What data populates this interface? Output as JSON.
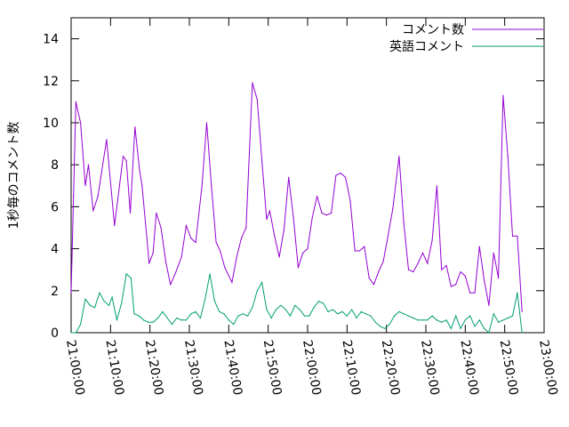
{
  "chart_data": {
    "type": "line",
    "title": "",
    "xlabel": "",
    "ylabel": "1秒毎のコメント数",
    "xlim": [
      "21:00:00",
      "23:00:00"
    ],
    "ylim": [
      0,
      15
    ],
    "x_ticks": [
      "21:00:00",
      "21:10:00",
      "21:20:00",
      "21:30:00",
      "21:40:00",
      "21:50:00",
      "22:00:00",
      "22:10:00",
      "22:20:00",
      "22:30:00",
      "22:40:00",
      "22:50:00",
      "23:00:00"
    ],
    "y_ticks": [
      0,
      2,
      4,
      6,
      8,
      10,
      12,
      14
    ],
    "grid": false,
    "legend_position": "top-right",
    "series": [
      {
        "name": "コメント数",
        "color": "#9400d3",
        "points": [
          [
            "21:00:00",
            1.9
          ],
          [
            "21:00:36",
            6.5
          ],
          [
            "21:01:12",
            11.0
          ],
          [
            "21:02:24",
            10.0
          ],
          [
            "21:03:36",
            7.0
          ],
          [
            "21:04:24",
            8.0
          ],
          [
            "21:05:36",
            5.8
          ],
          [
            "21:06:48",
            6.5
          ],
          [
            "21:09:00",
            9.2
          ],
          [
            "21:11:00",
            5.1
          ],
          [
            "21:13:12",
            8.4
          ],
          [
            "21:14:00",
            8.2
          ],
          [
            "21:15:00",
            5.7
          ],
          [
            "21:16:12",
            9.8
          ],
          [
            "21:17:24",
            7.7
          ],
          [
            "21:18:00",
            7.0
          ],
          [
            "21:19:48",
            3.3
          ],
          [
            "21:20:48",
            3.8
          ],
          [
            "21:21:36",
            5.7
          ],
          [
            "21:22:48",
            5.0
          ],
          [
            "21:24:00",
            3.4
          ],
          [
            "21:25:12",
            2.3
          ],
          [
            "21:26:24",
            2.8
          ],
          [
            "21:28:00",
            3.6
          ],
          [
            "21:29:12",
            5.1
          ],
          [
            "21:30:24",
            4.5
          ],
          [
            "21:31:36",
            4.3
          ],
          [
            "21:33:12",
            7.0
          ],
          [
            "21:34:24",
            10.0
          ],
          [
            "21:35:36",
            7.0
          ],
          [
            "21:36:48",
            4.3
          ],
          [
            "21:37:48",
            3.9
          ],
          [
            "21:39:00",
            3.1
          ],
          [
            "21:40:48",
            2.4
          ],
          [
            "21:42:00",
            3.6
          ],
          [
            "21:43:12",
            4.5
          ],
          [
            "21:44:24",
            5.0
          ],
          [
            "21:46:00",
            11.9
          ],
          [
            "21:47:12",
            11.1
          ],
          [
            "21:48:24",
            8.2
          ],
          [
            "21:49:36",
            5.4
          ],
          [
            "21:50:24",
            5.8
          ],
          [
            "21:51:36",
            4.6
          ],
          [
            "21:52:48",
            3.6
          ],
          [
            "21:54:00",
            4.9
          ],
          [
            "21:55:12",
            7.4
          ],
          [
            "21:56:24",
            5.5
          ],
          [
            "21:57:36",
            3.1
          ],
          [
            "21:58:48",
            3.8
          ],
          [
            "22:00:00",
            4.0
          ],
          [
            "22:01:12",
            5.5
          ],
          [
            "22:02:24",
            6.5
          ],
          [
            "22:03:36",
            5.7
          ],
          [
            "22:04:48",
            5.6
          ],
          [
            "22:06:00",
            5.7
          ],
          [
            "22:07:12",
            7.5
          ],
          [
            "22:08:24",
            7.6
          ],
          [
            "22:09:36",
            7.4
          ],
          [
            "22:10:48",
            6.3
          ],
          [
            "22:12:00",
            3.9
          ],
          [
            "22:13:12",
            3.9
          ],
          [
            "22:14:24",
            4.1
          ],
          [
            "22:15:36",
            2.6
          ],
          [
            "22:16:48",
            2.3
          ],
          [
            "22:18:00",
            2.9
          ],
          [
            "22:19:12",
            3.4
          ],
          [
            "22:20:24",
            4.6
          ],
          [
            "22:21:36",
            5.9
          ],
          [
            "22:23:12",
            8.4
          ],
          [
            "22:24:24",
            5.2
          ],
          [
            "22:25:36",
            3.0
          ],
          [
            "22:26:48",
            2.9
          ],
          [
            "22:28:00",
            3.3
          ],
          [
            "22:29:12",
            3.8
          ],
          [
            "22:30:24",
            3.3
          ],
          [
            "22:31:36",
            4.4
          ],
          [
            "22:32:48",
            7.0
          ],
          [
            "22:34:00",
            3.0
          ],
          [
            "22:35:12",
            3.2
          ],
          [
            "22:36:24",
            2.2
          ],
          [
            "22:37:36",
            2.3
          ],
          [
            "22:38:48",
            2.9
          ],
          [
            "22:40:00",
            2.7
          ],
          [
            "22:41:12",
            1.9
          ],
          [
            "22:42:24",
            1.9
          ],
          [
            "22:43:36",
            4.1
          ],
          [
            "22:44:48",
            2.5
          ],
          [
            "22:46:00",
            1.3
          ],
          [
            "22:47:12",
            3.8
          ],
          [
            "22:48:24",
            2.6
          ],
          [
            "22:49:36",
            11.3
          ],
          [
            "22:50:48",
            8.4
          ],
          [
            "22:52:00",
            4.6
          ],
          [
            "22:53:12",
            4.6
          ],
          [
            "22:54:24",
            1.0
          ]
        ]
      },
      {
        "name": "英語コメント",
        "color": "#009e73",
        "points": [
          [
            "21:00:00",
            0.0
          ],
          [
            "21:01:12",
            0.0
          ],
          [
            "21:02:24",
            0.4
          ],
          [
            "21:03:36",
            1.6
          ],
          [
            "21:04:48",
            1.3
          ],
          [
            "21:06:00",
            1.2
          ],
          [
            "21:07:12",
            1.9
          ],
          [
            "21:08:24",
            1.5
          ],
          [
            "21:09:36",
            1.3
          ],
          [
            "21:10:24",
            1.7
          ],
          [
            "21:11:36",
            0.6
          ],
          [
            "21:12:48",
            1.4
          ],
          [
            "21:14:00",
            2.8
          ],
          [
            "21:15:12",
            2.6
          ],
          [
            "21:16:00",
            0.9
          ],
          [
            "21:17:12",
            0.8
          ],
          [
            "21:18:24",
            0.6
          ],
          [
            "21:19:36",
            0.5
          ],
          [
            "21:20:48",
            0.5
          ],
          [
            "21:22:00",
            0.7
          ],
          [
            "21:23:12",
            1.0
          ],
          [
            "21:24:24",
            0.7
          ],
          [
            "21:25:36",
            0.4
          ],
          [
            "21:26:48",
            0.7
          ],
          [
            "21:28:00",
            0.6
          ],
          [
            "21:29:12",
            0.6
          ],
          [
            "21:30:24",
            0.9
          ],
          [
            "21:31:36",
            1.0
          ],
          [
            "21:32:48",
            0.7
          ],
          [
            "21:34:00",
            1.6
          ],
          [
            "21:35:12",
            2.8
          ],
          [
            "21:36:24",
            1.5
          ],
          [
            "21:37:36",
            1.0
          ],
          [
            "21:38:48",
            0.9
          ],
          [
            "21:40:00",
            0.6
          ],
          [
            "21:41:12",
            0.4
          ],
          [
            "21:42:24",
            0.8
          ],
          [
            "21:43:36",
            0.9
          ],
          [
            "21:44:48",
            0.8
          ],
          [
            "21:46:00",
            1.2
          ],
          [
            "21:47:12",
            2.0
          ],
          [
            "21:48:24",
            2.4
          ],
          [
            "21:49:36",
            1.1
          ],
          [
            "21:50:48",
            0.7
          ],
          [
            "21:52:00",
            1.1
          ],
          [
            "21:53:12",
            1.3
          ],
          [
            "21:54:24",
            1.1
          ],
          [
            "21:55:36",
            0.8
          ],
          [
            "21:56:48",
            1.3
          ],
          [
            "21:58:00",
            1.1
          ],
          [
            "21:59:12",
            0.8
          ],
          [
            "22:00:24",
            0.8
          ],
          [
            "22:01:36",
            1.2
          ],
          [
            "22:02:48",
            1.5
          ],
          [
            "22:04:00",
            1.4
          ],
          [
            "22:05:12",
            1.0
          ],
          [
            "22:06:24",
            1.1
          ],
          [
            "22:07:36",
            0.9
          ],
          [
            "22:08:48",
            1.0
          ],
          [
            "22:10:00",
            0.8
          ],
          [
            "22:11:12",
            1.1
          ],
          [
            "22:12:24",
            0.7
          ],
          [
            "22:13:36",
            1.0
          ],
          [
            "22:14:48",
            0.9
          ],
          [
            "22:16:00",
            0.8
          ],
          [
            "22:17:12",
            0.5
          ],
          [
            "22:18:24",
            0.3
          ],
          [
            "22:19:36",
            0.2
          ],
          [
            "22:20:48",
            0.4
          ],
          [
            "22:22:00",
            0.8
          ],
          [
            "22:23:12",
            1.0
          ],
          [
            "22:24:24",
            0.9
          ],
          [
            "22:25:36",
            0.8
          ],
          [
            "22:26:48",
            0.7
          ],
          [
            "22:28:00",
            0.6
          ],
          [
            "22:29:12",
            0.6
          ],
          [
            "22:30:24",
            0.6
          ],
          [
            "22:31:36",
            0.8
          ],
          [
            "22:32:48",
            0.6
          ],
          [
            "22:34:00",
            0.5
          ],
          [
            "22:35:12",
            0.6
          ],
          [
            "22:36:24",
            0.2
          ],
          [
            "22:37:36",
            0.8
          ],
          [
            "22:38:48",
            0.2
          ],
          [
            "22:40:00",
            0.6
          ],
          [
            "22:41:12",
            0.8
          ],
          [
            "22:42:24",
            0.3
          ],
          [
            "22:43:36",
            0.6
          ],
          [
            "22:44:48",
            0.2
          ],
          [
            "22:46:00",
            0.0
          ],
          [
            "22:47:12",
            0.9
          ],
          [
            "22:48:24",
            0.5
          ],
          [
            "22:49:36",
            0.6
          ],
          [
            "22:50:48",
            0.7
          ],
          [
            "22:52:00",
            0.8
          ],
          [
            "22:53:12",
            1.9
          ],
          [
            "22:54:24",
            0.0
          ]
        ]
      }
    ]
  }
}
